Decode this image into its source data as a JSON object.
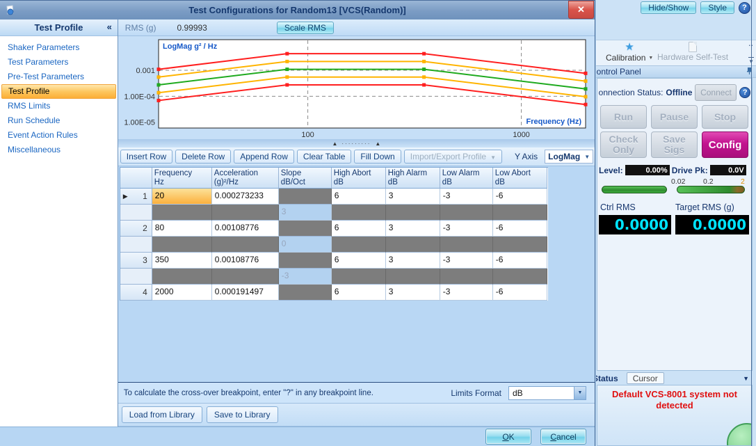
{
  "window": {
    "title": "Test Configurations for Random13 [VCS(Random)]"
  },
  "icons": {
    "close": "✕",
    "collapse": "«",
    "help": "?",
    "row_marker": "▶",
    "strip_arrow": "▲",
    "strip_dots": "·········",
    "caret_down": "▼",
    "overflow_dots": "..",
    "overflow_options": "▼"
  },
  "sidebar": {
    "header": "Test Profile",
    "items": [
      {
        "label": "Shaker Parameters"
      },
      {
        "label": "Test Parameters"
      },
      {
        "label": "Pre-Test Parameters"
      },
      {
        "label": "Test Profile"
      },
      {
        "label": "RMS Limits"
      },
      {
        "label": "Run Schedule"
      },
      {
        "label": "Event Action Rules"
      },
      {
        "label": "Miscellaneous"
      }
    ]
  },
  "rms_bar": {
    "label": "RMS (g)",
    "value": "0.99993",
    "scale_button": "Scale RMS"
  },
  "chart_data": {
    "type": "line",
    "xscale": "log",
    "yscale": "log",
    "x": [
      20,
      80,
      350,
      2000
    ],
    "xlim": [
      20,
      2000
    ],
    "ylim": [
      6e-06,
      0.015
    ],
    "xticks": [
      100,
      1000
    ],
    "yticks": [
      "0.001",
      "1.00E-04",
      "1.00E-05"
    ],
    "ytick_values": [
      0.001,
      0.0001,
      1e-05
    ],
    "ytick_gridlines": [
      true,
      true,
      false
    ],
    "title": "LogMag g² / Hz",
    "xlabel": "Frequency (Hz)",
    "series": [
      {
        "name": "high-abort",
        "color": "#ff1f1f",
        "values": [
          0.0010877,
          0.0043305,
          0.0043305,
          0.00076238
        ]
      },
      {
        "name": "high-alarm",
        "color": "#ffb400",
        "values": [
          0.00054518,
          0.0021704,
          0.0021704,
          0.00038209
        ]
      },
      {
        "name": "profile",
        "color": "#1faa1f",
        "values": [
          0.000273233,
          0.00108776,
          0.00108776,
          0.000191497
        ]
      },
      {
        "name": "low-alarm",
        "color": "#ffb400",
        "values": [
          0.00013694,
          0.00054518,
          0.00054518,
          9.5975e-05
        ]
      },
      {
        "name": "low-abort",
        "color": "#ff1f1f",
        "values": [
          6.8633e-05,
          0.00027323,
          0.00027323,
          4.8101e-05
        ]
      }
    ]
  },
  "toolbar": {
    "insert_row": "Insert Row",
    "delete_row": "Delete Row",
    "append_row": "Append Row",
    "clear_table": "Clear Table",
    "fill_down": "Fill Down",
    "import_export": "Import/Export Profile",
    "y_axis_label": "Y Axis",
    "y_axis_value": "LogMag"
  },
  "table": {
    "columns": {
      "freq": {
        "l1": "Frequency",
        "l2": "Hz"
      },
      "accel": {
        "l1": "Acceleration",
        "l2": "(g)²/Hz"
      },
      "slope": {
        "l1": "Slope",
        "l2": "dB/Oct"
      },
      "high_abort": {
        "l1": "High Abort",
        "l2": "dB"
      },
      "high_alarm": {
        "l1": "High Alarm",
        "l2": "dB"
      },
      "low_alarm": {
        "l1": "Low Alarm",
        "l2": "dB"
      },
      "low_abort": {
        "l1": "Low Abort",
        "l2": "dB"
      }
    },
    "rows": [
      {
        "num": "1",
        "freq": "20",
        "accel": "0.000273233",
        "high_abort": "6",
        "high_alarm": "3",
        "low_alarm": "-3",
        "low_abort": "-6"
      },
      {
        "slope": "3"
      },
      {
        "num": "2",
        "freq": "80",
        "accel": "0.00108776",
        "high_abort": "6",
        "high_alarm": "3",
        "low_alarm": "-3",
        "low_abort": "-6"
      },
      {
        "slope": "0"
      },
      {
        "num": "3",
        "freq": "350",
        "accel": "0.00108776",
        "high_abort": "6",
        "high_alarm": "3",
        "low_alarm": "-3",
        "low_abort": "-6"
      },
      {
        "slope": "-3"
      },
      {
        "num": "4",
        "freq": "2000",
        "accel": "0.000191497",
        "high_abort": "6",
        "high_alarm": "3",
        "low_alarm": "-3",
        "low_abort": "-6"
      }
    ]
  },
  "hint_bar": {
    "text": "To calculate the cross-over breakpoint, enter \"?\" in any breakpoint line.",
    "limits_format_label": "Limits Format",
    "limits_format_value": "dB"
  },
  "library": {
    "load_button": "Load from Library",
    "save_button": "Save to Library"
  },
  "footer": {
    "ok_mnemonic": "O",
    "ok_rest": "K",
    "cancel_mnemonic": "C",
    "cancel_rest": "ancel"
  },
  "right_panel": {
    "hide_show_button": "Hide/Show",
    "style_button": "Style",
    "ribbon": {
      "calibration": "Calibration",
      "hardware_self_test": "Hardware Self-Test"
    },
    "control_panel": {
      "title": "Control Panel",
      "connection_label": "Connection Status:",
      "connection_value": "Offline",
      "connect_button": "Connect",
      "run_button": "Run",
      "pause_button": "Pause",
      "stop_button": "Stop",
      "check_only_button": "Check Only",
      "save_sigs_button": "Save Sigs",
      "config_button": "Config",
      "level_label": "Level:",
      "level_value": "0.00%",
      "drive_label": "Drive Pk:",
      "drive_value": "0.0V",
      "drive_scale": [
        "0.02",
        "0.2",
        "2"
      ],
      "ctrl_rms_label": "Ctrl RMS",
      "target_rms_label": "Target RMS (g)",
      "ctrl_rms_value": "0.0000",
      "target_rms_value": "0.0000"
    },
    "tabs": {
      "status": "Status",
      "cursor": "Cursor"
    },
    "status_message": "Default VCS-8001 system not detected"
  },
  "colors": {
    "selection_orange": "#fcae36",
    "config_magenta": "#c2138f",
    "error_red": "#e01010",
    "lcd_cyan": "#00e4ff",
    "profile_green": "#1faa1f",
    "alarm_orange": "#ffb400",
    "abort_red": "#ff1f1f"
  }
}
